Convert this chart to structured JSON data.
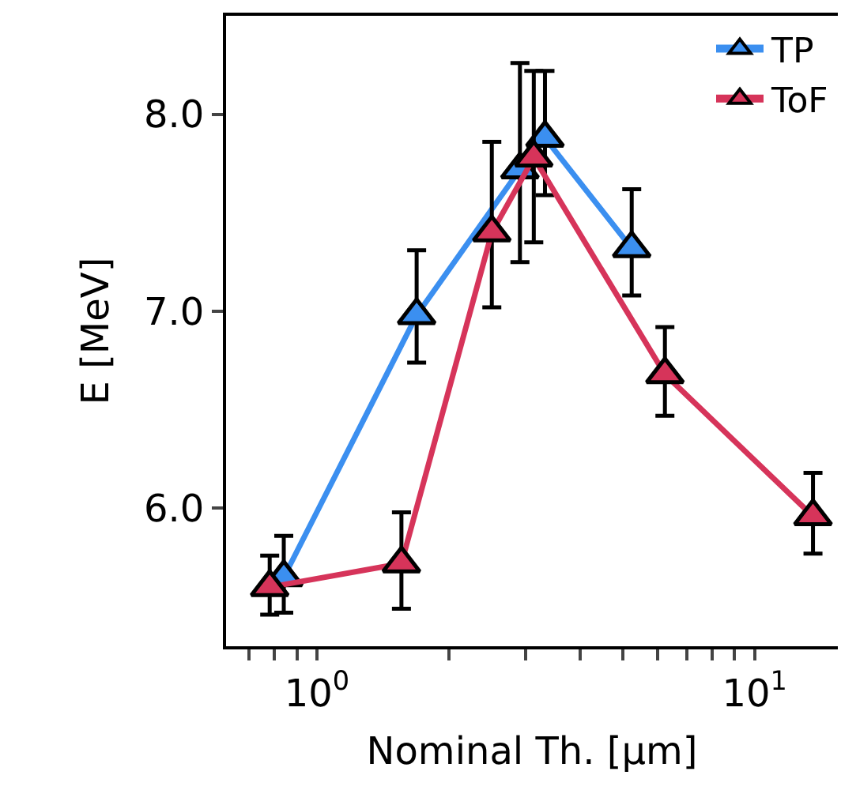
{
  "chart_data": {
    "type": "line",
    "xlabel": "Nominal Th. [μm]",
    "ylabel": "E [MeV]",
    "log": "x",
    "xlim": [
      0.62,
      15.5
    ],
    "ylim": [
      5.3,
      8.5
    ],
    "xticks": [
      {
        "value": 0.7,
        "label": null
      },
      {
        "value": 0.8,
        "label": null
      },
      {
        "value": 0.9,
        "label": null
      },
      {
        "value": 1,
        "label": "10$^{0}$"
      },
      {
        "value": 2,
        "label": null
      },
      {
        "value": 3,
        "label": null
      },
      {
        "value": 4,
        "label": null
      },
      {
        "value": 5,
        "label": null
      },
      {
        "value": 6,
        "label": null
      },
      {
        "value": 7,
        "label": null
      },
      {
        "value": 8,
        "label": null
      },
      {
        "value": 9,
        "label": null
      },
      {
        "value": 10,
        "label": "10$^{1}$"
      }
    ],
    "yticks": [
      {
        "value": 6,
        "label": "6.0"
      },
      {
        "value": 7,
        "label": "7.0"
      },
      {
        "value": 8,
        "label": "8.0"
      }
    ],
    "legend": "top right",
    "marker": "triangle",
    "line_style": "solid",
    "series": [
      {
        "name": "TP",
        "color": "#3b8ff0",
        "x": [
          0.84,
          1.69,
          2.91,
          3.32,
          5.24
        ],
        "values": [
          5.65,
          6.98,
          7.72,
          7.88,
          7.32
        ],
        "errors": [
          [
            5.47,
            5.86
          ],
          [
            6.74,
            7.31
          ],
          [
            7.25,
            8.26
          ],
          [
            7.59,
            8.22
          ],
          [
            7.08,
            7.62
          ]
        ]
      },
      {
        "name": "ToF",
        "color": "#d6345a",
        "x": [
          0.78,
          1.56,
          2.51,
          3.13,
          6.24,
          13.6
        ],
        "values": [
          5.6,
          5.72,
          7.4,
          7.78,
          6.68,
          5.96
        ],
        "errors": [
          [
            5.46,
            5.76
          ],
          [
            5.49,
            5.98
          ],
          [
            7.02,
            7.86
          ],
          [
            7.35,
            8.22
          ],
          [
            6.47,
            6.92
          ],
          [
            5.77,
            6.18
          ]
        ]
      }
    ]
  }
}
